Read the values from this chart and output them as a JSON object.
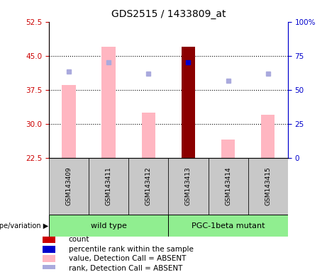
{
  "title": "GDS2515 / 1433809_at",
  "samples": [
    "GSM143409",
    "GSM143411",
    "GSM143412",
    "GSM143413",
    "GSM143414",
    "GSM143415"
  ],
  "ylim_left": [
    22.5,
    52.5
  ],
  "ylim_right": [
    0,
    100
  ],
  "yticks_left": [
    22.5,
    30,
    37.5,
    45,
    52.5
  ],
  "yticks_right": [
    0,
    25,
    50,
    75,
    100
  ],
  "bar_values_pink": [
    38.5,
    47.0,
    32.5,
    47.0,
    26.5,
    32.0
  ],
  "bar_color_pink": "#FFB6C1",
  "bar_color_darkred": "#8B0000",
  "dot_values_blue": [
    41.5,
    43.5,
    41.0,
    43.5,
    39.5,
    41.0
  ],
  "dot_color_blue": "#AAAADD",
  "dot_color_darkblue": "#0000CC",
  "highlight_sample_idx": 3,
  "bar_width": 0.35,
  "grid_yticks": [
    30,
    37.5,
    45
  ],
  "left_axis_color": "#CC0000",
  "right_axis_color": "#0000CC",
  "legend_items": [
    {
      "label": "count",
      "color": "#CC0000"
    },
    {
      "label": "percentile rank within the sample",
      "color": "#0000CC"
    },
    {
      "label": "value, Detection Call = ABSENT",
      "color": "#FFB6C1"
    },
    {
      "label": "rank, Detection Call = ABSENT",
      "color": "#AAAADD"
    }
  ]
}
